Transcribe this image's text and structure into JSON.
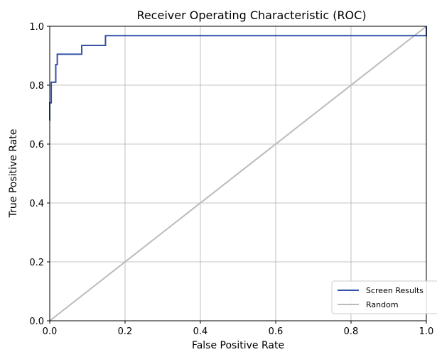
{
  "chart_data": {
    "type": "line",
    "title": "Receiver Operating Characteristic (ROC)",
    "xlabel": "False Positive Rate",
    "ylabel": "True Positive Rate",
    "xlim": [
      0.0,
      1.0
    ],
    "ylim": [
      0.0,
      1.0
    ],
    "xticks": [
      "0.0",
      "0.2",
      "0.4",
      "0.6",
      "0.8",
      "1.0"
    ],
    "yticks": [
      "0.0",
      "0.2",
      "0.4",
      "0.6",
      "0.8",
      "1.0"
    ],
    "grid": true,
    "legend_position": "lower-right",
    "series": [
      {
        "name": "Screen Results",
        "color": "#3450a8",
        "style": "step",
        "x": [
          0.0,
          0.0,
          0.004,
          0.004,
          0.008,
          0.008,
          0.016,
          0.016,
          0.02,
          0.02,
          0.085,
          0.085,
          0.148,
          0.148,
          0.987,
          0.987,
          1.0,
          1.0
        ],
        "y": [
          0.68,
          0.74,
          0.74,
          0.81,
          0.81,
          0.81,
          0.81,
          0.87,
          0.87,
          0.905,
          0.905,
          0.935,
          0.935,
          0.968,
          0.968,
          0.968,
          0.968,
          1.0
        ]
      },
      {
        "name": "Random",
        "color": "#bbbbbb",
        "style": "line",
        "x": [
          0.0,
          1.0
        ],
        "y": [
          0.0,
          1.0
        ]
      }
    ]
  }
}
